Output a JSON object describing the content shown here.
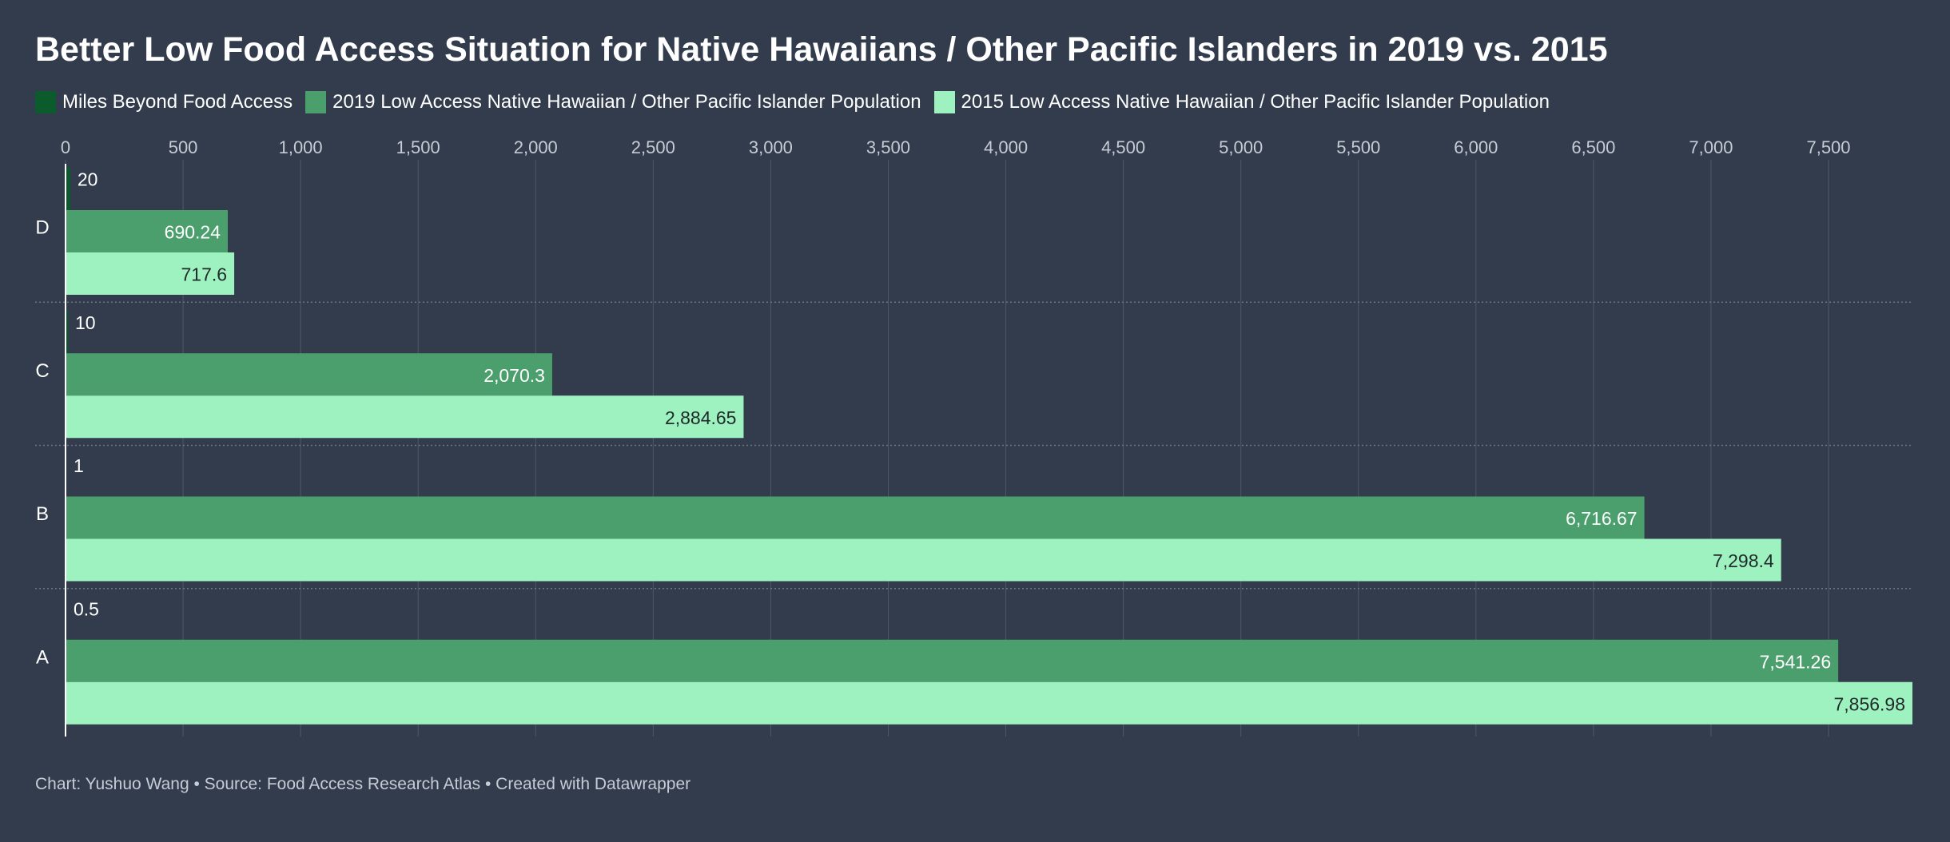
{
  "title": "Better Low Food Access Situation for Native Hawaiians / Other Pacific Islanders in 2019 vs. 2015",
  "footer": "Chart: Yushuo Wang • Source: Food Access Research Atlas • Created with Datawrapper",
  "colors": {
    "background": "#323c4c",
    "miles": "#0b5b2c",
    "pop2019": "#4b9f6d",
    "pop2015": "#9ef2bf",
    "grid": "#4e5868"
  },
  "chart_data": {
    "type": "bar",
    "orientation": "horizontal",
    "categories": [
      "D",
      "C",
      "B",
      "A"
    ],
    "series": [
      {
        "name": "Miles Beyond Food Access",
        "values": [
          20,
          10,
          1,
          0.5
        ],
        "labels": [
          "20",
          "10",
          "1",
          "0.5"
        ]
      },
      {
        "name": "2019 Low Access Native Hawaiian / Other Pacific Islander Population",
        "values": [
          690.24,
          2070.3,
          6716.67,
          7541.26
        ],
        "labels": [
          "690.24",
          "2,070.3",
          "6,716.67",
          "7,541.26"
        ]
      },
      {
        "name": "2015 Low Access Native Hawaiian / Other Pacific Islander Population",
        "values": [
          717.6,
          2884.65,
          7298.4,
          7856.98
        ],
        "labels": [
          "717.6",
          "2,884.65",
          "7,298.4",
          "7,856.98"
        ]
      }
    ],
    "x_ticks": [
      "0",
      "500",
      "1,000",
      "1,500",
      "2,000",
      "2,500",
      "3,000",
      "3,500",
      "4,000",
      "4,500",
      "5,000",
      "5,500",
      "6,000",
      "6,500",
      "7,000",
      "7,500"
    ],
    "x_tick_values": [
      0,
      500,
      1000,
      1500,
      2000,
      2500,
      3000,
      3500,
      4000,
      4500,
      5000,
      5500,
      6000,
      6500,
      7000,
      7500
    ],
    "xlim": [
      0,
      7856.98
    ],
    "grid": true,
    "legend_position": "top-left"
  }
}
